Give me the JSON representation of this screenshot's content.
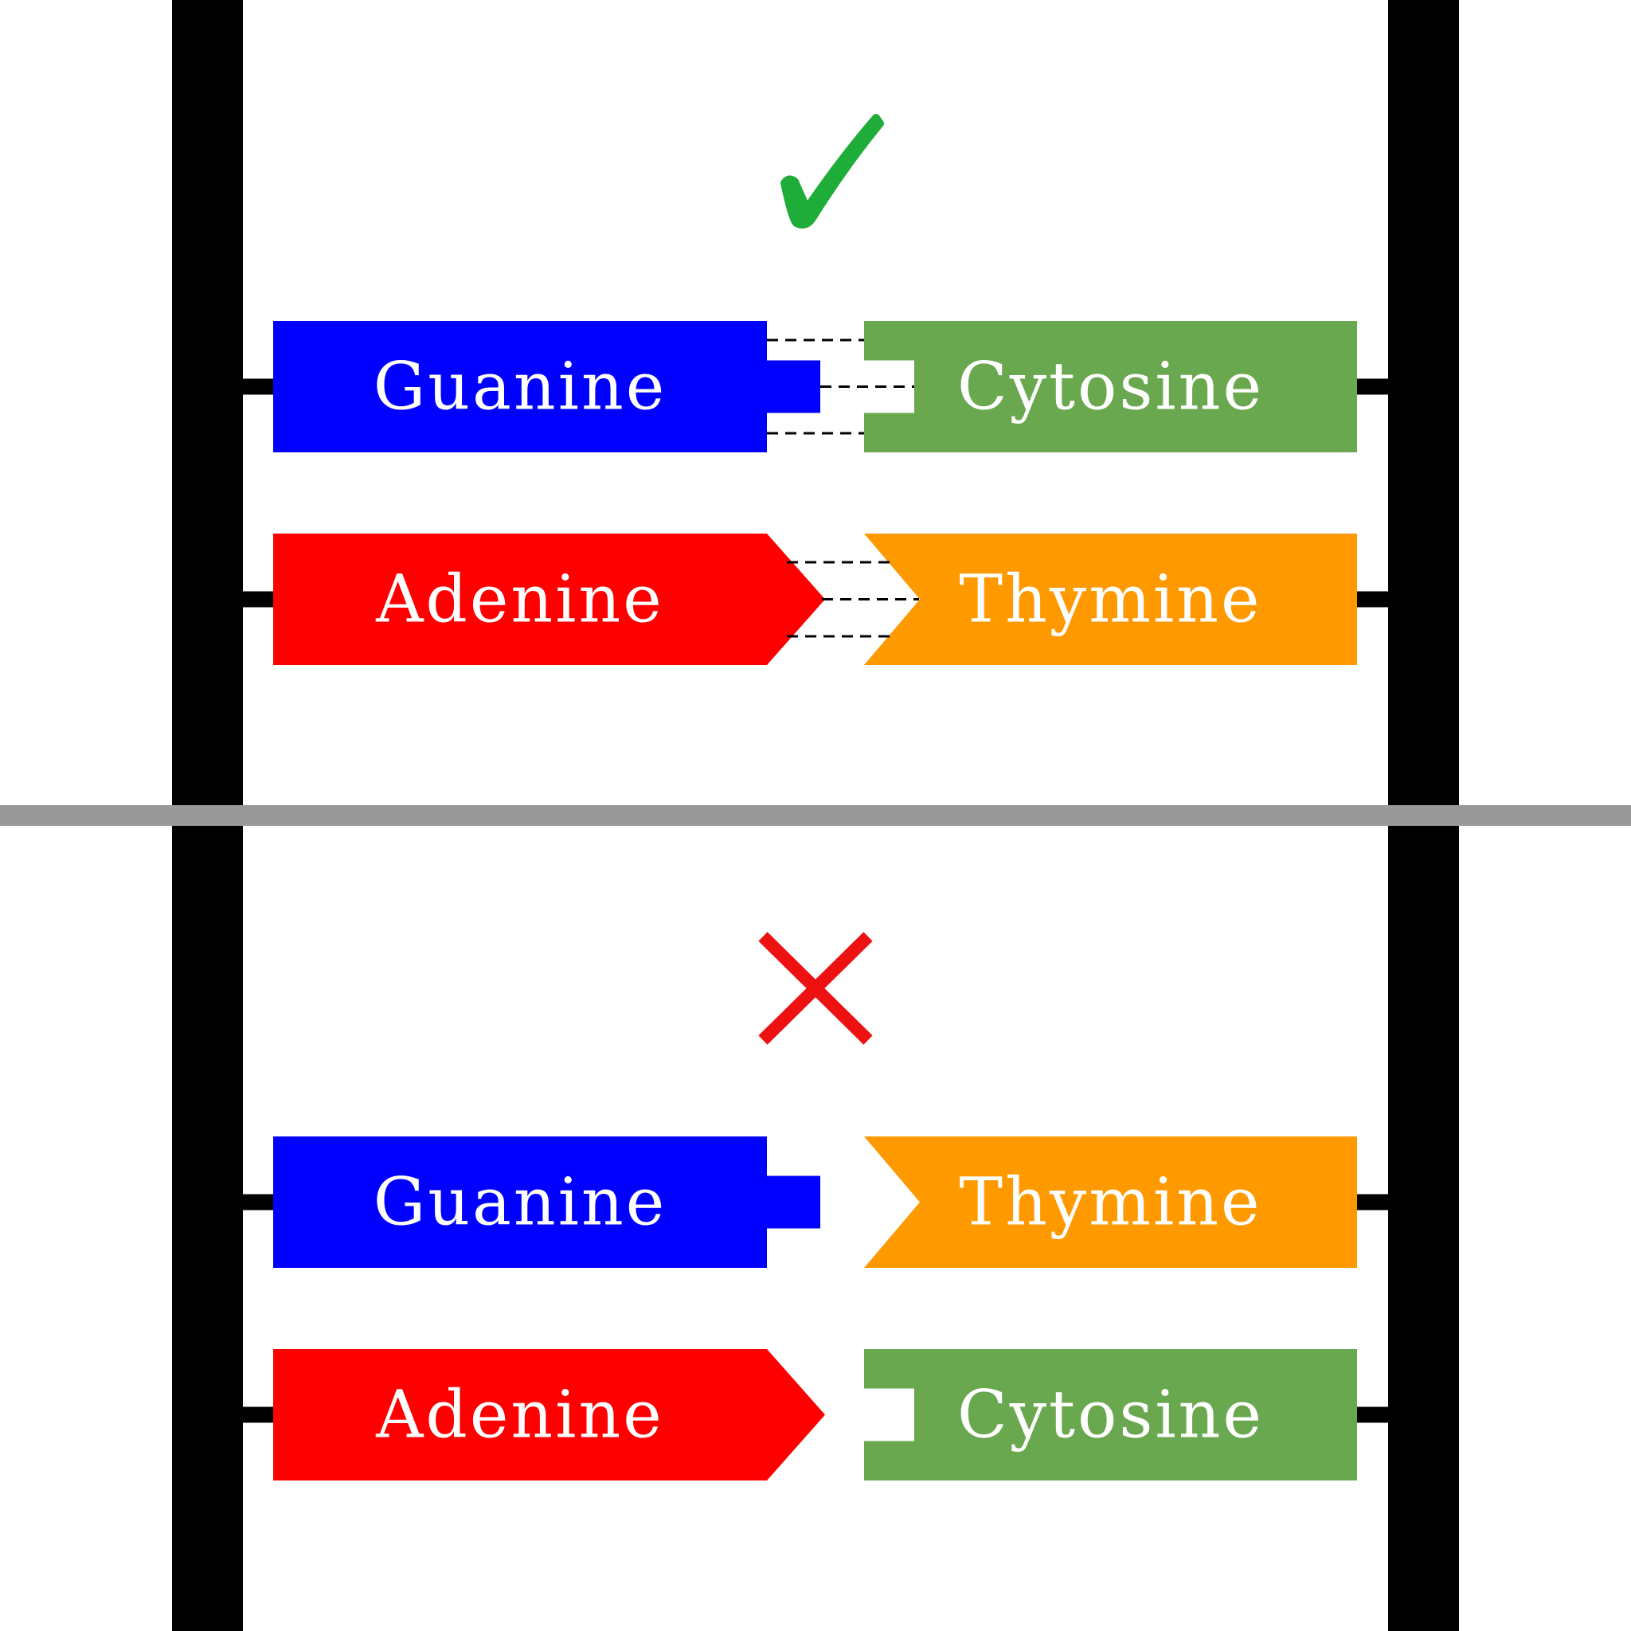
{
  "colors": {
    "guanine": "#0000ff",
    "adenine": "#ff0000",
    "cytosine": "#6aa84f",
    "thymine": "#ff9900",
    "backbone": "#000000",
    "divider": "#999999",
    "check": "#1fad3a",
    "cross": "#ee1111"
  },
  "top_panel": {
    "status_icon": "check-mark-icon",
    "pairs": [
      {
        "left": "Guanine",
        "right": "Cytosine",
        "bonded": true
      },
      {
        "left": "Adenine",
        "right": "Thymine",
        "bonded": true
      }
    ]
  },
  "bottom_panel": {
    "status_icon": "cross-mark-icon",
    "pairs": [
      {
        "left": "Guanine",
        "right": "Thymine",
        "bonded": false
      },
      {
        "left": "Adenine",
        "right": "Cytosine",
        "bonded": false
      }
    ]
  }
}
